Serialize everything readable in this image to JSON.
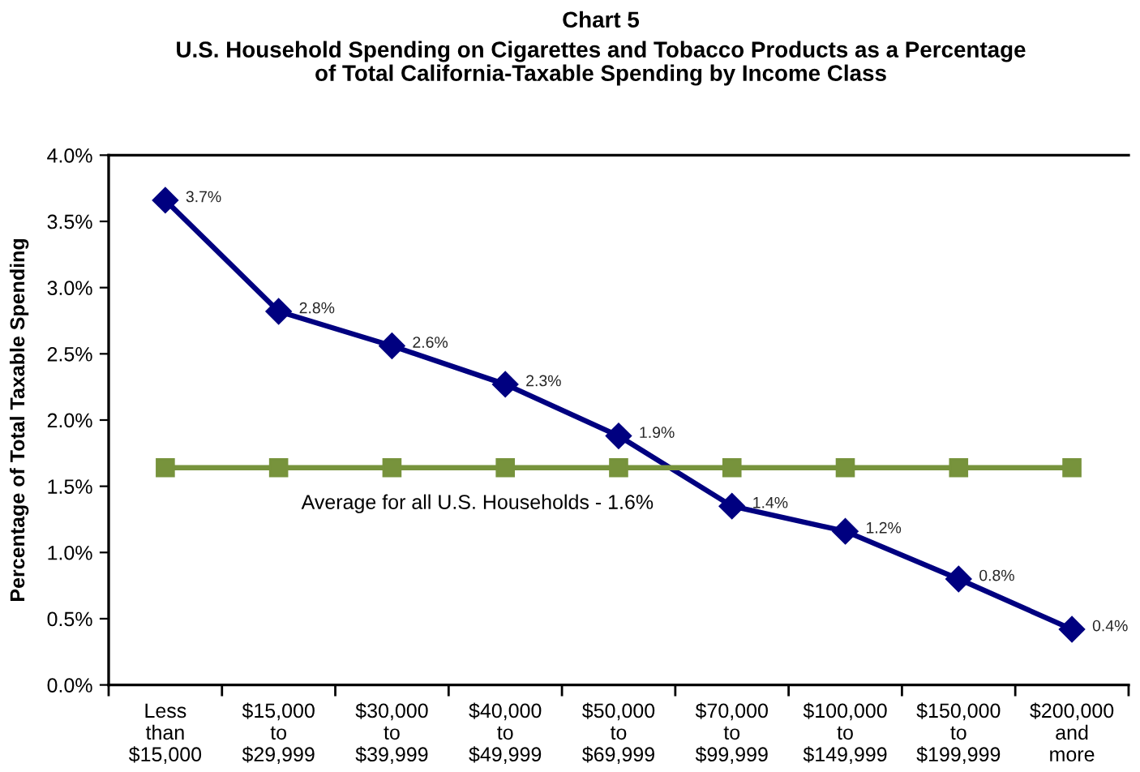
{
  "chart_data": {
    "type": "line",
    "title": "Chart 5",
    "subtitle": "U.S. Household Spending on Cigarettes and Tobacco Products as a Percentage\nof Total California-Taxable Spending by Income Class",
    "ylabel": "Percentage of Total Taxable Spending",
    "categories": [
      "Less\nthan\n$15,000",
      "$15,000\nto\n$29,999",
      "$30,000\nto\n$39,999",
      "$40,000\nto\n$49,999",
      "$50,000\nto\n$69,999",
      "$70,000\nto\n$99,999",
      "$100,000\nto\n$149,999",
      "$150,000\nto\n$199,999",
      "$200,000\nand\nmore"
    ],
    "series": [
      {
        "color": "#000080",
        "marker": "diamond",
        "values": [
          3.66,
          2.82,
          2.56,
          2.27,
          1.88,
          1.35,
          1.16,
          0.8,
          0.42
        ],
        "value_labels": [
          "3.7%",
          "2.8%",
          "2.6%",
          "2.3%",
          "1.9%",
          "1.4%",
          "1.2%",
          "0.8%",
          "0.4%"
        ]
      },
      {
        "name": "Average for all U.S. Households - 1.6%",
        "color": "#77933c",
        "marker": "square",
        "values": [
          1.64,
          1.64,
          1.64,
          1.64,
          1.64,
          1.64,
          1.64,
          1.64,
          1.64
        ]
      }
    ],
    "ylim": [
      0,
      4
    ],
    "yticks": [
      {
        "value": 0,
        "label": "0.0%"
      },
      {
        "value": 0.5,
        "label": "0.5%"
      },
      {
        "value": 1,
        "label": "1.0%"
      },
      {
        "value": 1.5,
        "label": "1.5%"
      },
      {
        "value": 2,
        "label": "2.0%"
      },
      {
        "value": 2.5,
        "label": "2.5%"
      },
      {
        "value": 3,
        "label": "3.0%"
      },
      {
        "value": 3.5,
        "label": "3.5%"
      },
      {
        "value": 4,
        "label": "4.0%"
      }
    ],
    "line_style": "solid"
  }
}
